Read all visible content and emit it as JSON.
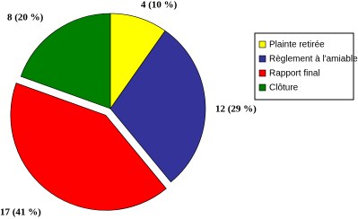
{
  "chart_data": {
    "type": "pie",
    "categories": [
      "Plainte retirée",
      "Règlement à l'amiable",
      "Rapport final",
      "Clôture"
    ],
    "values": [
      4,
      12,
      17,
      8
    ],
    "value_labels": [
      "4 (10 %)",
      "12 (29 %)",
      "17 (41 %)",
      "8 (20 %)"
    ],
    "colors": [
      "#ffff00",
      "#333399",
      "#ff0000",
      "#008000"
    ],
    "legend": "right"
  }
}
